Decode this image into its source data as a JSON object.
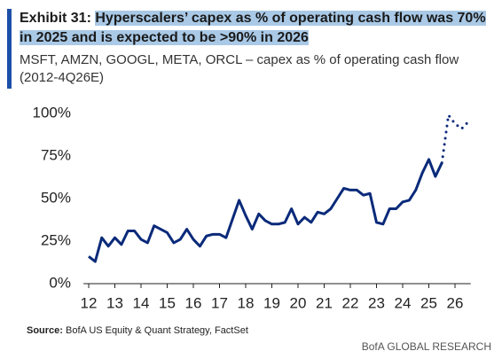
{
  "exhibit": "Exhibit 31:",
  "source_label": "Source:",
  "source": "BofA US Equity & Quant Strategy, FactSet",
  "brand": "BofA GLOBAL RESEARCH",
  "chart_data": {
    "type": "line",
    "title": "Hyperscalers’ capex as % of operating cash flow was 70% in 2025 and is expected to be >90% in 2026",
    "subtitle": "MSFT, AMZN, GOOGL, META, ORCL – capex as % of operating cash flow (2012-4Q26E)",
    "xlim": [
      11.8,
      26.6
    ],
    "ylim": [
      0,
      100
    ],
    "xticks": [
      12,
      13,
      14,
      15,
      16,
      17,
      18,
      19,
      20,
      21,
      22,
      23,
      24,
      25,
      26
    ],
    "yticks": [
      {
        "value": 0,
        "label": "0%"
      },
      {
        "value": 25,
        "label": "25%"
      },
      {
        "value": 50,
        "label": "50%"
      },
      {
        "value": 75,
        "label": "75%"
      },
      {
        "value": 100,
        "label": "100%"
      }
    ],
    "series": [
      {
        "color": "#0a2a7a",
        "dash": false,
        "x": [
          12,
          12.25,
          12.5,
          12.75,
          13,
          13.25,
          13.5,
          13.75,
          14,
          14.25,
          14.5,
          14.75,
          15,
          15.25,
          15.5,
          15.75,
          16,
          16.25,
          16.5,
          16.75,
          17,
          17.25,
          17.5,
          17.75,
          18,
          18.25,
          18.5,
          18.75,
          19,
          19.25,
          19.5,
          19.75,
          20,
          20.25,
          20.5,
          20.75,
          21,
          21.25,
          21.5,
          21.75,
          22,
          22.25,
          22.5,
          22.75,
          23,
          23.25,
          23.5,
          23.75,
          24,
          24.25,
          24.5,
          24.75,
          25,
          25.25,
          25.5
        ],
        "values": [
          16,
          13,
          27,
          22,
          27,
          23,
          31,
          31,
          26,
          24,
          34,
          32,
          30,
          24,
          26,
          32,
          26,
          22,
          28,
          29,
          29,
          27,
          38,
          49,
          40,
          32,
          41,
          37,
          35,
          35,
          36,
          44,
          35,
          39,
          36,
          42,
          41,
          44,
          50,
          56,
          55,
          55,
          52,
          53,
          36,
          35,
          44,
          44,
          48,
          49,
          55,
          65,
          73,
          63,
          71
        ]
      },
      {
        "color": "#0a2a7a",
        "dash": true,
        "x": [
          25.5,
          25.75,
          26,
          26.25,
          26.5
        ],
        "values": [
          71,
          99,
          94,
          91,
          95
        ]
      }
    ]
  }
}
